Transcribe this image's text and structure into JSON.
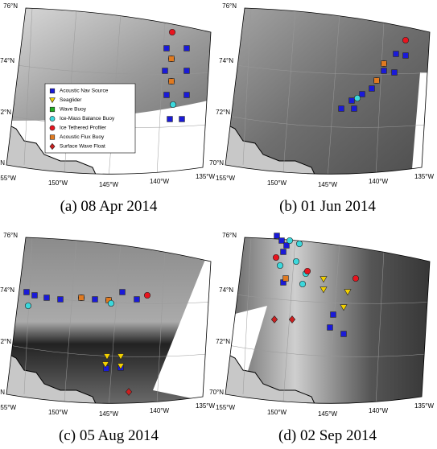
{
  "panels": [
    {
      "caption": "(a) 08 Apr 2014"
    },
    {
      "caption": "(b) 01 Jun 2014"
    },
    {
      "caption": "(c) 05 Aug 2014"
    },
    {
      "caption": "(d) 02 Sep 2014"
    }
  ],
  "lat_labels": [
    "76°N",
    "74°N",
    "72°N",
    "70°N"
  ],
  "lon_labels": [
    "155°W",
    "150°W",
    "145°W",
    "140°W",
    "135°W"
  ],
  "legend": [
    {
      "label": "Acoustic Nav Source",
      "color": "#1a1ad8",
      "marker": "square"
    },
    {
      "label": "Seaglider",
      "color": "#f2d000",
      "marker": "triangle"
    },
    {
      "label": "Wave Buoy",
      "color": "#22b022",
      "marker": "square"
    },
    {
      "label": "Ice-Mass Balance Buoy",
      "color": "#3cd8dc",
      "marker": "circle"
    },
    {
      "label": "Ice Tethered Profiler",
      "color": "#e8141e",
      "marker": "circle"
    },
    {
      "label": "Acoustic Flux Buoy",
      "color": "#e07a20",
      "marker": "square"
    },
    {
      "label": "Surface Wave Float",
      "color": "#cc1f1f",
      "marker": "diamond"
    }
  ]
}
